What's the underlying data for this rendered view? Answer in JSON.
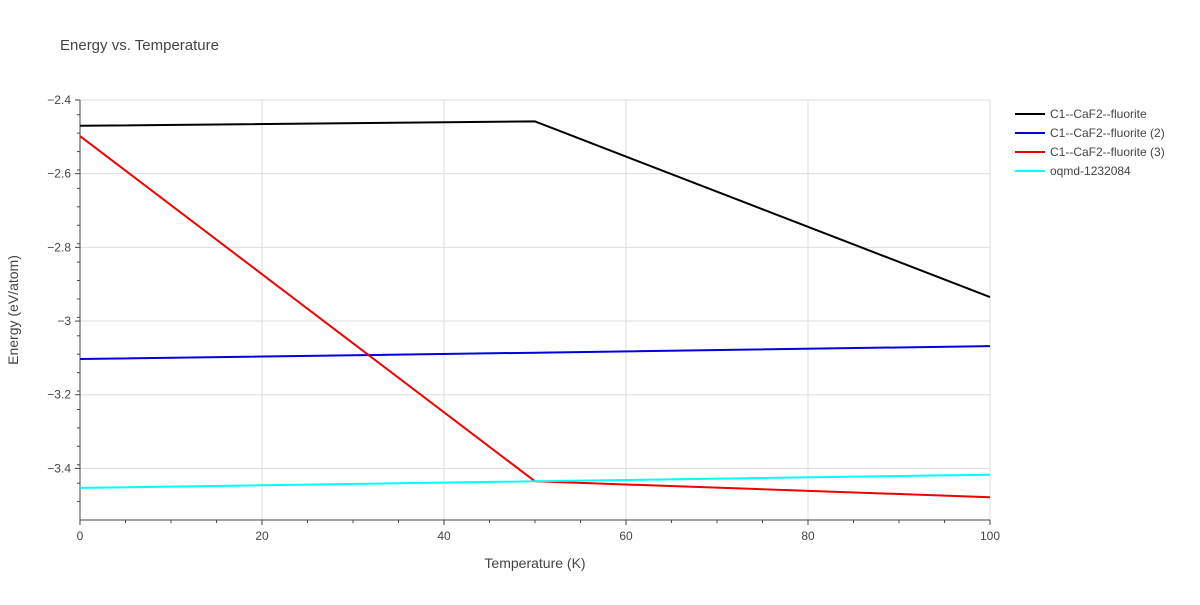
{
  "chart_data": {
    "type": "line",
    "title": "Energy vs. Temperature",
    "xlabel": "Temperature (K)",
    "ylabel": "Energy (eV/atom)",
    "xlim": [
      0,
      100
    ],
    "ylim": [
      -3.54,
      -2.4
    ],
    "xticks": [
      0,
      20,
      40,
      60,
      80,
      100
    ],
    "yticks": [
      -3.4,
      -3.2,
      -3.0,
      -2.8,
      -2.6,
      -2.4
    ],
    "ytick_labels": [
      "−3.4",
      "−3.2",
      "−3",
      "−2.8",
      "−2.6",
      "−2.4"
    ],
    "grid": true,
    "legend_position": "top-right outside",
    "series": [
      {
        "name": "C1--CaF2--fluorite",
        "color": "#000000",
        "x": [
          0,
          50,
          100
        ],
        "y": [
          -2.47,
          -2.458,
          -2.935
        ]
      },
      {
        "name": "C1--CaF2--fluorite (2)",
        "color": "#0000dd",
        "x": [
          0,
          50,
          100
        ],
        "y": [
          -3.103,
          -3.086,
          -3.068
        ]
      },
      {
        "name": "C1--CaF2--fluorite (3)",
        "color": "#ee0000",
        "x": [
          0,
          50,
          100
        ],
        "y": [
          -2.498,
          -3.435,
          -3.478
        ]
      },
      {
        "name": "oqmd-1232084",
        "color": "#00ffff",
        "x": [
          0,
          50,
          100
        ],
        "y": [
          -3.453,
          -3.435,
          -3.417
        ]
      }
    ]
  }
}
